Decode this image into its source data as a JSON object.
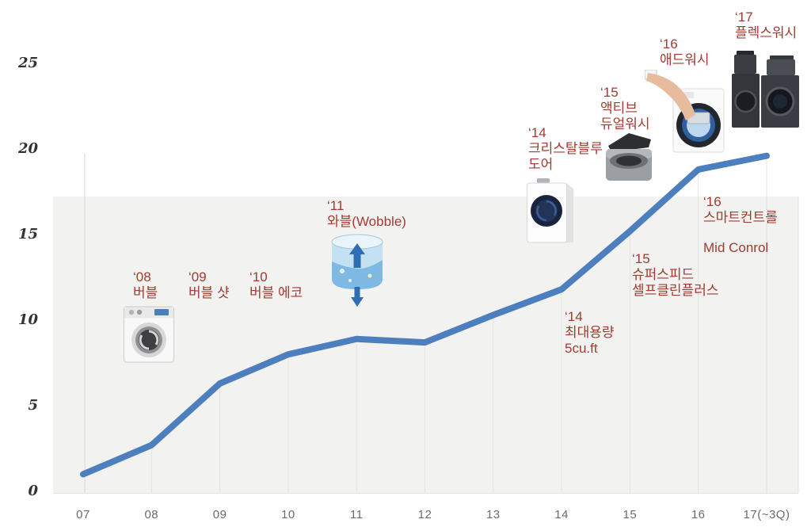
{
  "chart_data": {
    "type": "line",
    "title": "",
    "xlabel": "",
    "ylabel": "",
    "x": [
      "07",
      "08",
      "09",
      "10",
      "11",
      "12",
      "13",
      "14",
      "15",
      "16",
      "17(~3Q)"
    ],
    "values": [
      1.0,
      2.7,
      6.3,
      8.0,
      8.9,
      8.7,
      10.3,
      11.8,
      15.2,
      18.8,
      19.6
    ],
    "yticks": [
      0,
      5,
      10,
      15,
      20,
      25
    ],
    "ylim": [
      0,
      25
    ],
    "grid": true,
    "legend": "none",
    "line_color": "#4d7ebd",
    "annotation_color": "#a13b30"
  },
  "annotations": {
    "y08": {
      "year": "‘08",
      "l1": "버블"
    },
    "y09": {
      "year": "‘09",
      "l1": "버블 샷"
    },
    "y10": {
      "year": "‘10",
      "l1": "버블 에코"
    },
    "y11": {
      "year": "‘11",
      "l1": "와블(Wobble)"
    },
    "y14a": {
      "year": "‘14",
      "l1": "크리스탈블루",
      "l2": "도어"
    },
    "y15a": {
      "year": "‘15",
      "l1": "액티브",
      "l2": "듀얼워시"
    },
    "y16a": {
      "year": "‘16",
      "l1": "애드워시"
    },
    "y17": {
      "year": "‘17",
      "l1": "플렉스워시"
    },
    "y14b": {
      "year": "‘14",
      "l1": "최대용량",
      "l2": "5cu.ft"
    },
    "y15b": {
      "year": "‘15",
      "l1": "슈퍼스피드",
      "l2": "셀프클린플러스"
    },
    "y16b": {
      "year": "‘16",
      "l1": "스마트컨트롤",
      "l2": "Mid Conrol"
    }
  }
}
